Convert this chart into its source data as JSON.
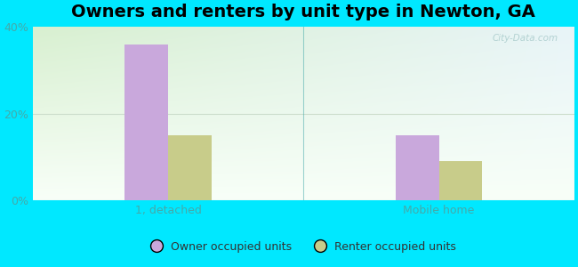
{
  "title": "Owners and renters by unit type in Newton, GA",
  "categories": [
    "1, detached",
    "Mobile home"
  ],
  "owner_values": [
    36.0,
    15.0
  ],
  "renter_values": [
    15.0,
    9.0
  ],
  "owner_color": "#c9a8dc",
  "renter_color": "#c8cc8a",
  "ylim": [
    0,
    40
  ],
  "yticks": [
    0,
    20,
    40
  ],
  "ytick_labels": [
    "0%",
    "20%",
    "40%"
  ],
  "background_outer": "#00e8ff",
  "background_inner_topleft": "#d8f0d0",
  "background_inner_topright": "#e8f4f8",
  "background_inner_bottom": "#f8fff8",
  "bar_width": 0.32,
  "legend_labels": [
    "Owner occupied units",
    "Renter occupied units"
  ],
  "watermark": "City-Data.com",
  "title_fontsize": 14,
  "tick_fontsize": 9,
  "legend_fontsize": 9,
  "tick_color": "#44aaaa",
  "separator_color": "#44aaaa",
  "grid_color": "#ccddcc"
}
